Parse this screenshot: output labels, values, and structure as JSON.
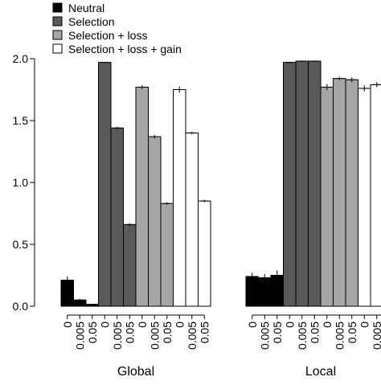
{
  "chart_data": {
    "type": "bar",
    "title": "",
    "ylabel": "",
    "ylim": [
      0,
      2.0
    ],
    "yticks": [
      "0.0",
      "0.5",
      "1.0",
      "1.5",
      "2.0"
    ],
    "legend": {
      "placement": "top-left",
      "entries": [
        {
          "name": "Neutral",
          "color": "#000000"
        },
        {
          "name": "Selection",
          "color": "#595959"
        },
        {
          "name": "Selection + loss",
          "color": "#a6a6a6"
        },
        {
          "name": "Selection + loss + gain",
          "color": "#ffffff"
        }
      ]
    },
    "panels": [
      {
        "label": "Global",
        "categories": [
          "0",
          "0.005",
          "0.05"
        ],
        "series": [
          {
            "name": "Neutral",
            "values": [
              0.21,
              0.05,
              0.015
            ],
            "errors": [
              0.03,
              0.01,
              0.005
            ]
          },
          {
            "name": "Selection",
            "values": [
              1.97,
              1.44,
              0.66
            ],
            "errors": [
              0.005,
              0.01,
              0.01
            ]
          },
          {
            "name": "Selection + loss",
            "values": [
              1.77,
              1.37,
              0.83
            ],
            "errors": [
              0.015,
              0.015,
              0.01
            ]
          },
          {
            "name": "Selection + loss + gain",
            "values": [
              1.75,
              1.4,
              0.85
            ],
            "errors": [
              0.025,
              0.01,
              0.01
            ]
          }
        ]
      },
      {
        "label": "Local",
        "categories": [
          "0",
          "0.005",
          "0.05"
        ],
        "series": [
          {
            "name": "Neutral",
            "values": [
              0.24,
              0.23,
              0.25
            ],
            "errors": [
              0.03,
              0.03,
              0.04
            ]
          },
          {
            "name": "Selection",
            "values": [
              1.97,
              1.98,
              1.98
            ],
            "errors": [
              0.005,
              0.005,
              0.005
            ]
          },
          {
            "name": "Selection + loss",
            "values": [
              1.77,
              1.84,
              1.83
            ],
            "errors": [
              0.025,
              0.015,
              0.02
            ]
          },
          {
            "name": "Selection + loss + gain",
            "values": [
              1.76,
              1.79,
              null
            ],
            "errors": [
              0.025,
              0.02,
              null
            ]
          }
        ]
      }
    ]
  }
}
